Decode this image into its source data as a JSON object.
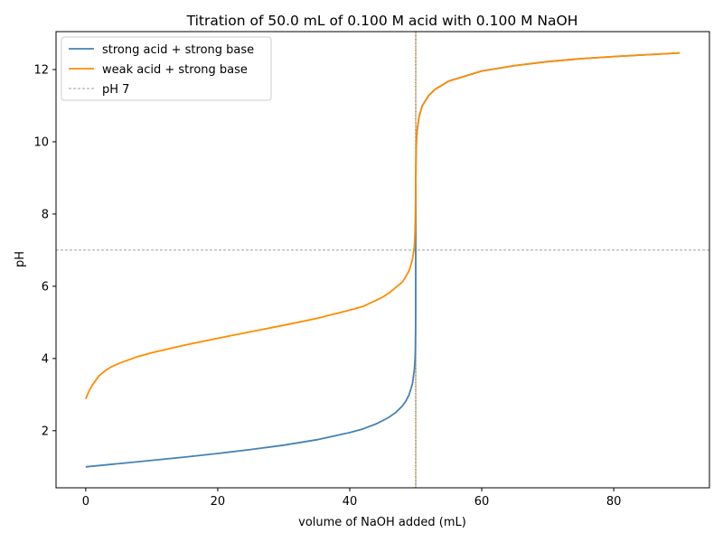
{
  "chart_data": {
    "type": "line",
    "title": "Titration of 50.0 mL of 0.100 M acid with 0.100 M NaOH",
    "xlabel": "volume of NaOH added (mL)",
    "ylabel": "pH",
    "xlim": [
      -4.5,
      94.5
    ],
    "ylim": [
      0.42,
      13.05
    ],
    "xticks": [
      0,
      20,
      40,
      60,
      80
    ],
    "yticks": [
      2,
      4,
      6,
      8,
      10,
      12
    ],
    "grid": false,
    "legend_position": "top-left",
    "equivalence_volume": 50.0,
    "series": [
      {
        "name": "strong acid + strong base",
        "color": "#4682b4",
        "style": "solid",
        "points": [
          [
            0,
            1.0
          ],
          [
            5,
            1.09
          ],
          [
            10,
            1.18
          ],
          [
            15,
            1.27
          ],
          [
            20,
            1.37
          ],
          [
            25,
            1.48
          ],
          [
            30,
            1.6
          ],
          [
            35,
            1.75
          ],
          [
            40,
            1.95
          ],
          [
            42,
            2.05
          ],
          [
            44,
            2.19
          ],
          [
            45,
            2.28
          ],
          [
            46,
            2.38
          ],
          [
            47,
            2.51
          ],
          [
            48,
            2.69
          ],
          [
            48.5,
            2.82
          ],
          [
            49,
            3.0
          ],
          [
            49.5,
            3.3
          ],
          [
            49.8,
            3.7
          ],
          [
            49.9,
            4.0
          ],
          [
            49.95,
            4.3
          ],
          [
            49.99,
            5.0
          ],
          [
            50.0,
            7.0
          ],
          [
            50.01,
            9.0
          ],
          [
            50.05,
            9.7
          ],
          [
            50.1,
            10.0
          ],
          [
            50.2,
            10.3
          ],
          [
            50.5,
            10.7
          ],
          [
            51,
            11.0
          ],
          [
            52,
            11.29
          ],
          [
            53,
            11.46
          ],
          [
            55,
            11.68
          ],
          [
            60,
            11.96
          ],
          [
            65,
            12.11
          ],
          [
            70,
            12.22
          ],
          [
            75,
            12.3
          ],
          [
            80,
            12.36
          ],
          [
            85,
            12.41
          ],
          [
            90,
            12.46
          ]
        ]
      },
      {
        "name": "weak acid + strong base",
        "color": "#ff8c00",
        "style": "solid",
        "points": [
          [
            0,
            2.88
          ],
          [
            0.5,
            3.1
          ],
          [
            1,
            3.26
          ],
          [
            2,
            3.52
          ],
          [
            3,
            3.67
          ],
          [
            4,
            3.78
          ],
          [
            5,
            3.86
          ],
          [
            7.5,
            4.03
          ],
          [
            10,
            4.16
          ],
          [
            15,
            4.37
          ],
          [
            20,
            4.56
          ],
          [
            25,
            4.74
          ],
          [
            30,
            4.92
          ],
          [
            35,
            5.11
          ],
          [
            40,
            5.34
          ],
          [
            42,
            5.44
          ],
          [
            44,
            5.61
          ],
          [
            45,
            5.7
          ],
          [
            46,
            5.82
          ],
          [
            47,
            5.97
          ],
          [
            48,
            6.12
          ],
          [
            48.5,
            6.27
          ],
          [
            49,
            6.43
          ],
          [
            49.5,
            6.74
          ],
          [
            49.8,
            7.1
          ],
          [
            49.9,
            7.5
          ],
          [
            49.95,
            8.0
          ],
          [
            50.0,
            8.72
          ],
          [
            50.05,
            9.7
          ],
          [
            50.1,
            10.0
          ],
          [
            50.2,
            10.3
          ],
          [
            50.5,
            10.7
          ],
          [
            51,
            11.0
          ],
          [
            52,
            11.29
          ],
          [
            53,
            11.46
          ],
          [
            55,
            11.68
          ],
          [
            60,
            11.96
          ],
          [
            65,
            12.11
          ],
          [
            70,
            12.22
          ],
          [
            75,
            12.3
          ],
          [
            80,
            12.36
          ],
          [
            85,
            12.41
          ],
          [
            90,
            12.46
          ]
        ]
      },
      {
        "name": "pH 7",
        "color": "#808080",
        "style": "dashed",
        "y": 7
      }
    ]
  }
}
